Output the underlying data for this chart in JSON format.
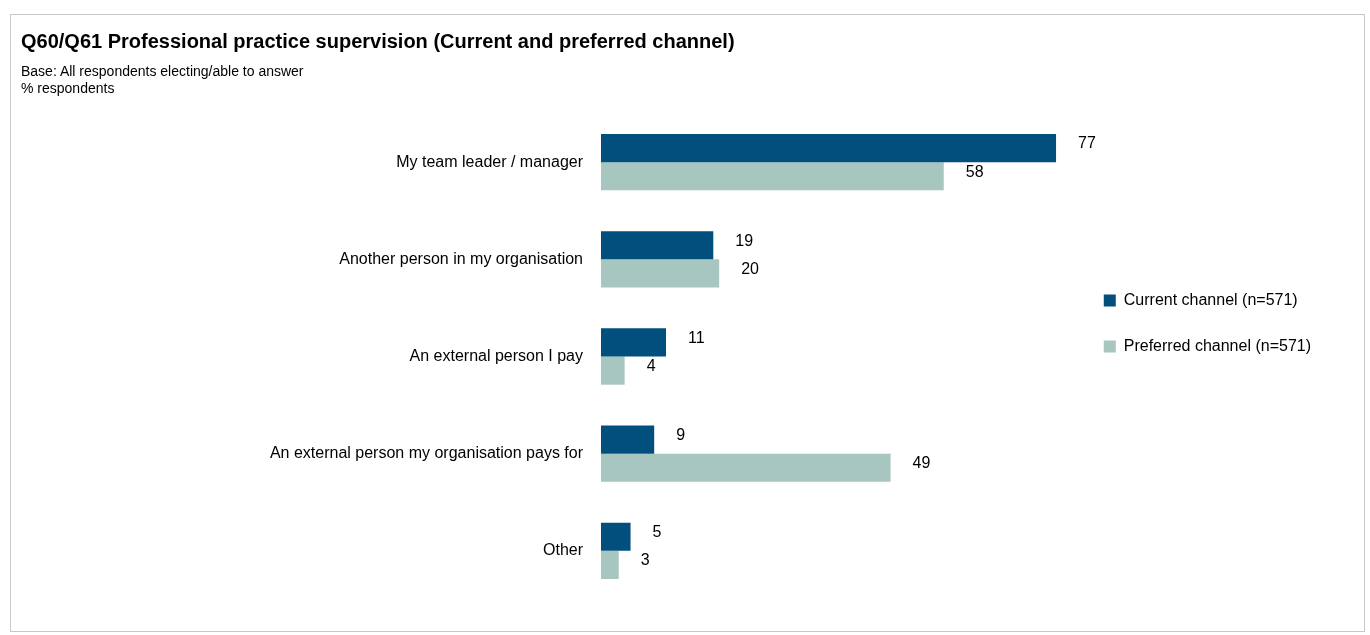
{
  "chart_data": {
    "type": "bar",
    "orientation": "horizontal",
    "title": "Q60/Q61 Professional practice supervision (Current and preferred channel)",
    "annotations": [
      "Base: All respondents electing/able to answer",
      "% respondents"
    ],
    "categories": [
      "My team leader / manager",
      "Another person in my organisation",
      "An external person I pay",
      "An external person my organisation pays for",
      "Other"
    ],
    "series": [
      {
        "name": "Current channel (n=571)",
        "color": "#004f7c",
        "values": [
          77,
          19,
          11,
          9,
          5
        ]
      },
      {
        "name": "Preferred channel (n=571)",
        "color": "#a6c6bf",
        "values": [
          58,
          20,
          4,
          49,
          3
        ]
      }
    ],
    "data_labels": true,
    "legend": "right",
    "grid": false
  }
}
